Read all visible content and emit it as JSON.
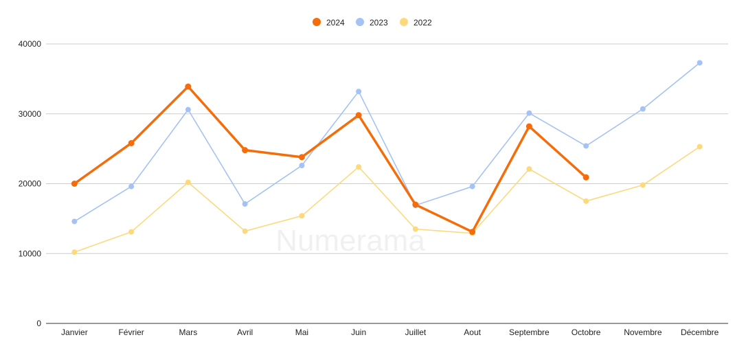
{
  "watermark": "Numerama",
  "chart_data": {
    "type": "line",
    "title": "",
    "xlabel": "",
    "ylabel": "",
    "categories": [
      "Janvier",
      "Février",
      "Mars",
      "Avril",
      "Mai",
      "Juin",
      "Juillet",
      "Aout",
      "Septembre",
      "Octobre",
      "Novembre",
      "Décembre"
    ],
    "ylim": [
      0,
      40000
    ],
    "yticks": [
      "0",
      "10000",
      "20000",
      "30000",
      "40000"
    ],
    "grid": true,
    "legend_position": "top-center",
    "series": [
      {
        "name": "2024",
        "color": "#f46d0a",
        "values": [
          20000,
          25800,
          33900,
          24800,
          23800,
          29800,
          17000,
          13100,
          28200,
          20900,
          null,
          null
        ]
      },
      {
        "name": "2023",
        "color": "#a4c2f4",
        "values": [
          14600,
          19600,
          30600,
          17100,
          22600,
          33200,
          16900,
          19600,
          30100,
          25400,
          30700,
          37300
        ]
      },
      {
        "name": "2022",
        "color": "#fcd97d",
        "values": [
          10200,
          13100,
          20200,
          13200,
          15400,
          22400,
          13500,
          12900,
          22100,
          17500,
          19800,
          25300
        ]
      }
    ]
  }
}
